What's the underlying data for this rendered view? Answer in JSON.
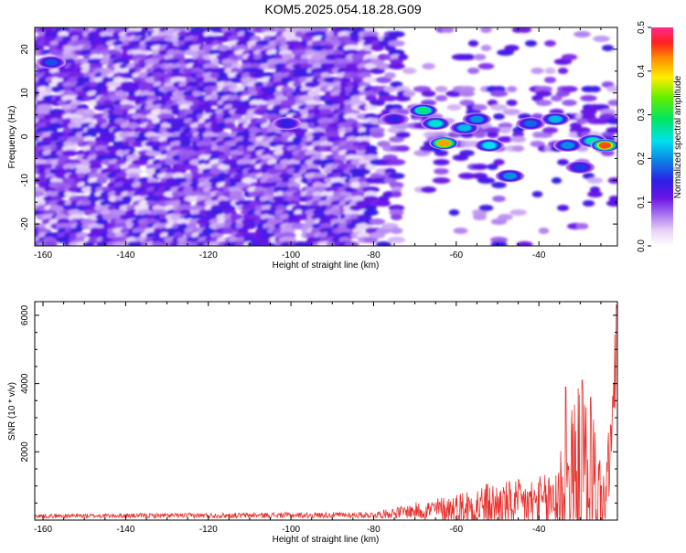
{
  "title": "KOM5.2025.054.18.28.G09",
  "chart_data": [
    {
      "type": "heatmap",
      "xlabel": "Height of straight line (km)",
      "ylabel": "Frequency (Hz)",
      "xlim": [
        -162,
        -21
      ],
      "ylim": [
        -25,
        25
      ],
      "x_ticks": [
        -160,
        -140,
        -120,
        -100,
        -80,
        -60,
        -40
      ],
      "y_ticks": [
        -20,
        -10,
        0,
        10,
        20
      ],
      "colorbar": {
        "label": "Normalized spectral amplitude",
        "range": [
          0,
          0.5
        ],
        "ticks": [
          "0.0",
          "0.1",
          "0.2",
          "0.3",
          "0.4",
          "0.5"
        ]
      },
      "hotspots": [
        {
          "x": -68,
          "y": 6,
          "value": 0.28
        },
        {
          "x": -65,
          "y": 3,
          "value": 0.25
        },
        {
          "x": -63,
          "y": -1.5,
          "value": 0.42
        },
        {
          "x": -58,
          "y": 2,
          "value": 0.22
        },
        {
          "x": -55,
          "y": 4,
          "value": 0.2
        },
        {
          "x": -52,
          "y": -2,
          "value": 0.24
        },
        {
          "x": -47,
          "y": -9,
          "value": 0.2
        },
        {
          "x": -42,
          "y": 3,
          "value": 0.18
        },
        {
          "x": -36,
          "y": 4,
          "value": 0.22
        },
        {
          "x": -33,
          "y": -2,
          "value": 0.2
        },
        {
          "x": -27,
          "y": -1,
          "value": 0.26
        },
        {
          "x": -24,
          "y": -2,
          "value": 0.45
        },
        {
          "x": -30,
          "y": -7,
          "value": 0.16
        },
        {
          "x": -101,
          "y": 3,
          "value": 0.15
        },
        {
          "x": -75,
          "y": 4,
          "value": 0.14
        },
        {
          "x": -158,
          "y": 17,
          "value": 0.17
        }
      ]
    },
    {
      "type": "line",
      "xlabel": "Height of straight line (km)",
      "ylabel": "SNR (10 * v/v)",
      "xlim": [
        -162,
        -21
      ],
      "ylim": [
        0,
        6400
      ],
      "x_ticks": [
        -160,
        -140,
        -120,
        -100,
        -80,
        -60,
        -40
      ],
      "y_ticks": [
        2000,
        4000,
        6000
      ],
      "series": [
        {
          "color": "#e8302c",
          "envelope": [
            {
              "x": -162,
              "mean": 120,
              "amp": 60
            },
            {
              "x": -80,
              "mean": 150,
              "amp": 90
            },
            {
              "x": -72,
              "mean": 250,
              "amp": 200
            },
            {
              "x": -60,
              "mean": 350,
              "amp": 450
            },
            {
              "x": -55,
              "mean": 420,
              "amp": 650
            },
            {
              "x": -45,
              "mean": 450,
              "amp": 750
            },
            {
              "x": -38,
              "mean": 500,
              "amp": 850
            },
            {
              "x": -34,
              "mean": 900,
              "amp": 1700
            },
            {
              "x": -30,
              "mean": 1300,
              "amp": 2800
            },
            {
              "x": -27,
              "mean": 1100,
              "amp": 2400
            },
            {
              "x": -24,
              "mean": 500,
              "amp": 700
            },
            {
              "x": -22,
              "mean": 3000,
              "amp": 2000
            },
            {
              "x": -21,
              "mean": 5800,
              "amp": 500
            }
          ],
          "peaks": [
            {
              "x": -33.5,
              "y": 3900
            },
            {
              "x": -29.5,
              "y": 4100
            },
            {
              "x": -27.5,
              "y": 3600
            },
            {
              "x": -21.2,
              "y": 6300
            }
          ]
        }
      ]
    }
  ]
}
